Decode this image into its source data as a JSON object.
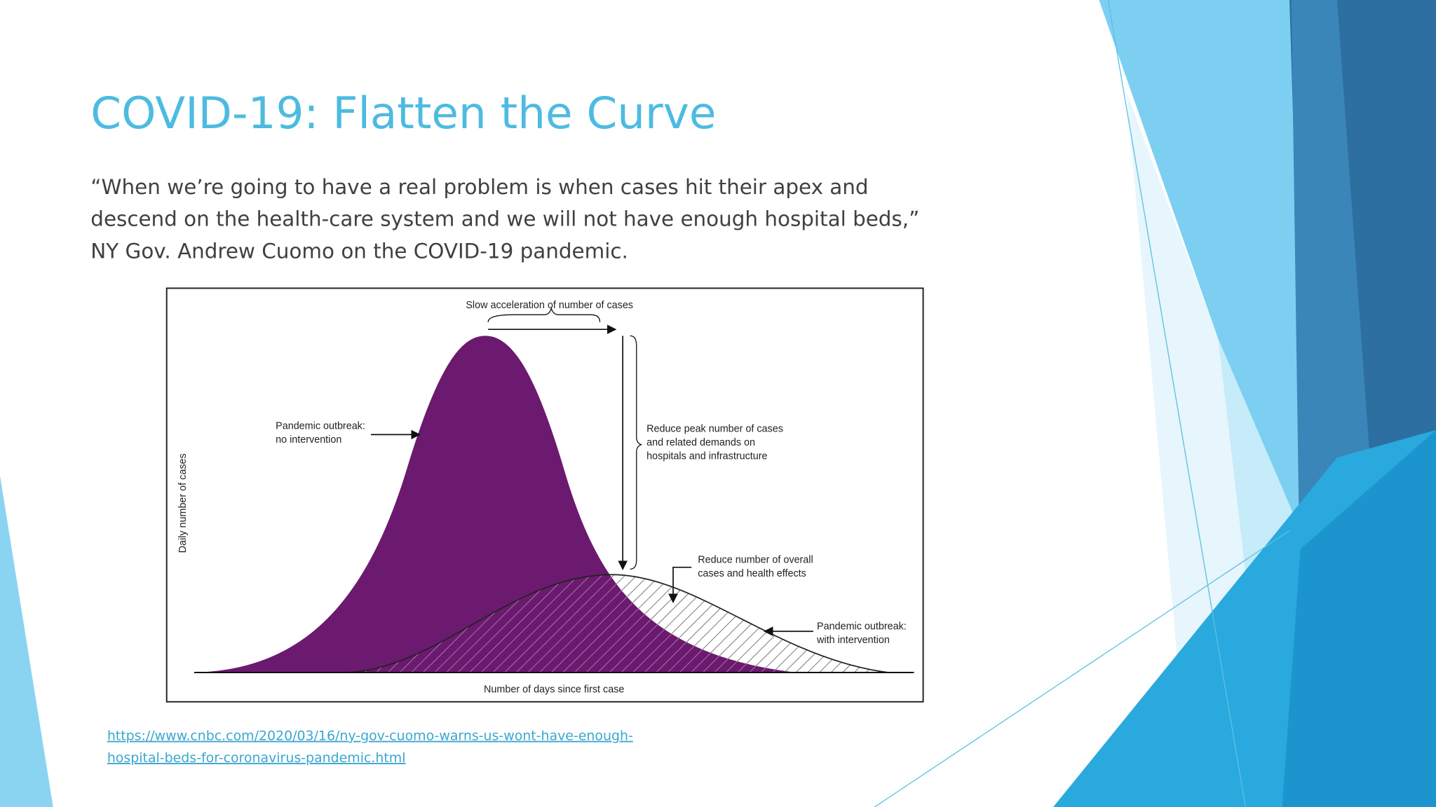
{
  "slide": {
    "title": "COVID-19: Flatten the Curve",
    "quote": [
      "“When we’re going to have a real problem is when cases hit their apex and",
      "descend on the health-care system and we will not have enough hospital beds,”",
      "NY Gov. Andrew Cuomo on the COVID-19 pandemic."
    ],
    "figure": {
      "top_label": "Slow acceleration of number of cases",
      "no_intervention_label": [
        "Pandemic outbreak:",
        "no intervention"
      ],
      "peak_label": [
        "Reduce peak number of cases",
        "and related demands on",
        "hospitals and infrastructure"
      ],
      "overall_label": [
        "Reduce number of overall",
        "cases and health effects"
      ],
      "with_intervention_label": [
        "Pandemic outbreak:",
        "with intervention"
      ],
      "x_axis_label": "Number of days since first case",
      "y_axis_label": "Daily number of cases"
    },
    "link": [
      "https://www.cnbc.com/2020/03/16/ny-gov-cuomo-warns-us-wont-have-enough-",
      "hospital-beds-for-coronavirus-pandemic.html"
    ]
  }
}
